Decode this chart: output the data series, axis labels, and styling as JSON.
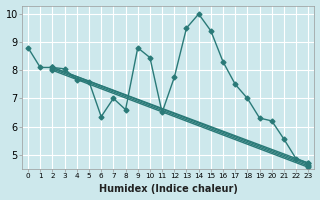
{
  "bg_color": "#cde8ec",
  "grid_color": "#ffffff",
  "line_color": "#2a7a78",
  "marker": "D",
  "markersize": 2.5,
  "linewidth": 1.0,
  "xlim": [
    -0.5,
    23.5
  ],
  "ylim": [
    4.5,
    10.3
  ],
  "xlabel": "Humidex (Indice chaleur)",
  "yticks": [
    5,
    6,
    7,
    8,
    9,
    10
  ],
  "xtick_labels": [
    "0",
    "1",
    "2",
    "3",
    "4",
    "5",
    "6",
    "7",
    "8",
    "9",
    "10",
    "11",
    "12",
    "13",
    "14",
    "15",
    "16",
    "17",
    "18",
    "19",
    "20",
    "21",
    "22",
    "23"
  ],
  "series": [
    {
      "x": [
        0,
        1,
        2,
        3,
        4,
        5,
        6,
        7,
        8,
        9,
        10,
        11,
        12,
        13,
        14,
        15,
        16,
        17,
        18,
        19,
        20,
        21,
        22,
        23
      ],
      "y": [
        8.8,
        8.1,
        8.1,
        8.05,
        7.65,
        7.6,
        6.35,
        7.0,
        6.6,
        8.8,
        8.45,
        6.5,
        7.75,
        9.5,
        10.0,
        9.4,
        8.3,
        7.5,
        7.0,
        6.3,
        6.2,
        5.55,
        4.85,
        4.7
      ]
    },
    {
      "x": [
        2,
        23
      ],
      "y": [
        8.1,
        4.7
      ]
    },
    {
      "x": [
        2,
        23
      ],
      "y": [
        8.05,
        4.6
      ]
    },
    {
      "x": [
        2,
        23
      ],
      "y": [
        8.0,
        4.55
      ]
    },
    {
      "x": [
        2,
        23
      ],
      "y": [
        8.1,
        4.65
      ]
    }
  ]
}
